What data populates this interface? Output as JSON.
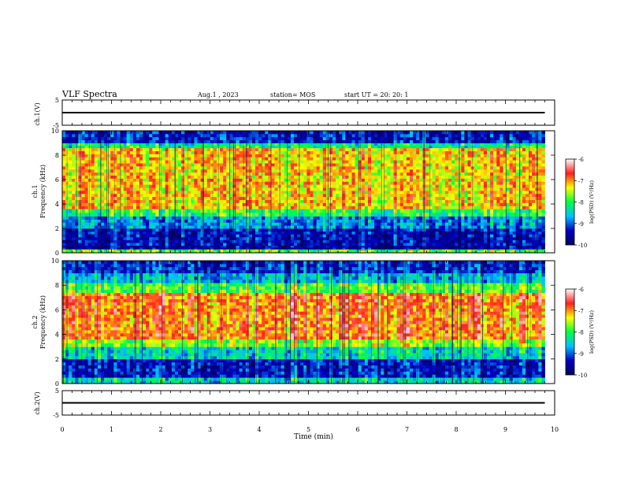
{
  "header": {
    "title": "VLF Spectra",
    "date": "Aug.1 , 2023",
    "station": "station= MOS",
    "start": "start UT = 20: 20: 1"
  },
  "panels": {
    "ch1_wave_ylabel": "ch.1(V)",
    "ch1_spec_ylabel_a": "ch.1",
    "ch1_spec_ylabel_b": "Frequency (kHz)",
    "ch2_spec_ylabel_a": "ch.2",
    "ch2_spec_ylabel_b": "Frequency (kHz)",
    "ch2_wave_ylabel": "ch.2(V)",
    "xlabel": "Time (min)"
  },
  "colorbar": {
    "label": "log(PSD) (V²/Hz)",
    "ticks": [
      "-6",
      "-7",
      "-8",
      "-9",
      "-10"
    ],
    "colors": [
      "#ffffff",
      "#ff2020",
      "#ffff00",
      "#00ff40",
      "#00c0ff",
      "#0000c0",
      "#000060"
    ]
  },
  "chart_data": [
    {
      "type": "line",
      "name": "ch.1 waveform",
      "ylabel": "ch.1(V)",
      "ylim": [
        -5,
        5
      ],
      "yticks": [
        "5",
        "-5"
      ],
      "xlim": [
        0,
        10
      ],
      "x": [
        0,
        9.8
      ],
      "y": [
        0,
        0
      ]
    },
    {
      "type": "heatmap",
      "name": "ch.1 spectrogram",
      "ylabel": "Frequency (kHz)",
      "ylim": [
        0,
        10
      ],
      "yticks": [
        "0",
        "2",
        "4",
        "6",
        "8",
        "10"
      ],
      "xlim": [
        0,
        9.8
      ],
      "zlim": [
        -10,
        -6
      ],
      "bands": [
        {
          "f": [
            0,
            0.3
          ],
          "level": -7.8
        },
        {
          "f": [
            0.3,
            0.6
          ],
          "level": -9.6
        },
        {
          "f": [
            0.6,
            2.0
          ],
          "level": -9.4
        },
        {
          "f": [
            2.0,
            3.0
          ],
          "level": -8.8
        },
        {
          "f": [
            3.0,
            3.6
          ],
          "level": -8.0
        },
        {
          "f": [
            3.6,
            8.6
          ],
          "level": -7.2
        },
        {
          "f": [
            8.6,
            9.0
          ],
          "level": -8.2
        },
        {
          "f": [
            9.0,
            10
          ],
          "level": -9.3
        }
      ]
    },
    {
      "type": "heatmap",
      "name": "ch.2 spectrogram",
      "ylabel": "Frequency (kHz)",
      "ylim": [
        0,
        10
      ],
      "yticks": [
        "0",
        "2",
        "4",
        "6",
        "8",
        "10"
      ],
      "xlim": [
        0,
        9.8
      ],
      "zlim": [
        -10,
        -6
      ],
      "bands": [
        {
          "f": [
            0,
            0.5
          ],
          "level": -8.4
        },
        {
          "f": [
            0.5,
            2.0
          ],
          "level": -9.3
        },
        {
          "f": [
            2.0,
            3.0
          ],
          "level": -8.4
        },
        {
          "f": [
            3.0,
            3.6
          ],
          "level": -7.6
        },
        {
          "f": [
            3.6,
            7.4
          ],
          "level": -6.9
        },
        {
          "f": [
            7.4,
            8.2
          ],
          "level": -7.8
        },
        {
          "f": [
            8.2,
            9.0
          ],
          "level": -8.6
        },
        {
          "f": [
            9.0,
            10
          ],
          "level": -9.2
        }
      ]
    },
    {
      "type": "line",
      "name": "ch.2 waveform",
      "ylabel": "ch.2(V)",
      "ylim": [
        -5,
        5
      ],
      "yticks": [
        "5",
        "-5"
      ],
      "xlim": [
        0,
        10
      ],
      "x": [
        0,
        9.8
      ],
      "y": [
        0,
        0
      ]
    }
  ],
  "xaxis": {
    "range": [
      0,
      10
    ],
    "ticks": [
      "0",
      "1",
      "2",
      "3",
      "4",
      "5",
      "6",
      "7",
      "8",
      "9",
      "10"
    ]
  }
}
